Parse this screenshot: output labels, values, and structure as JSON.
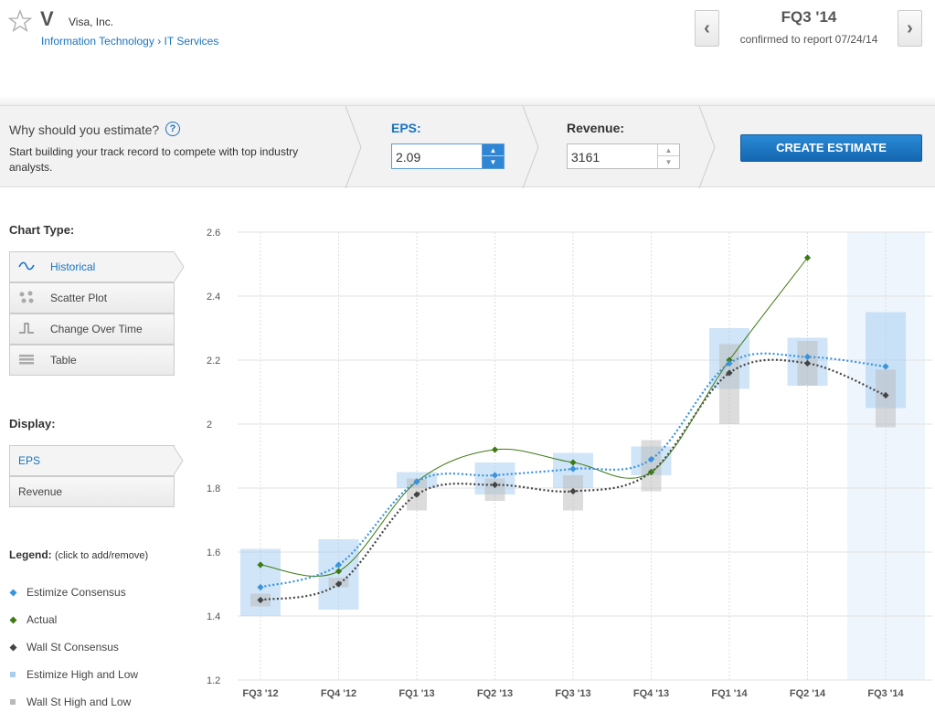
{
  "header": {
    "ticker": "V",
    "company": "Visa, Inc.",
    "sector": "Information Technology",
    "separator": "›",
    "industry": "IT Services",
    "quarter": "FQ3 '14",
    "confirmed": "confirmed to report 07/24/14",
    "prev_icon": "chevron-left-icon",
    "next_icon": "chevron-right-icon",
    "prev_label": "‹",
    "next_label": "›"
  },
  "estimate": {
    "why_title": "Why should you estimate?",
    "help_label": "?",
    "why_text": "Start building your track record to compete with top industry analysts.",
    "eps_label": "EPS:",
    "eps_value": "2.09",
    "revenue_label": "Revenue:",
    "revenue_value": "3161",
    "create_label": "CREATE ESTIMATE"
  },
  "sidebar": {
    "chart_type_title": "Chart Type:",
    "chart_types": [
      {
        "label": "Historical",
        "icon": "wave-icon",
        "active": true
      },
      {
        "label": "Scatter Plot",
        "icon": "scatter-icon",
        "active": false
      },
      {
        "label": "Change Over Time",
        "icon": "step-icon",
        "active": false
      },
      {
        "label": "Table",
        "icon": "table-icon",
        "active": false
      }
    ],
    "display_title": "Display:",
    "display_options": [
      {
        "label": "EPS",
        "active": true
      },
      {
        "label": "Revenue",
        "active": false
      }
    ],
    "legend_title": "Legend:",
    "legend_hint": "(click to add/remove)",
    "legend": [
      {
        "label": "Estimize Consensus",
        "color": "#3a93dd"
      },
      {
        "label": "Actual",
        "color": "#3d7a14"
      },
      {
        "label": "Wall St Consensus",
        "color": "#444444"
      },
      {
        "label": "Estimize High and Low",
        "color": "#a9cff0"
      },
      {
        "label": "Wall St High and Low",
        "color": "#b9b9b9"
      }
    ]
  },
  "chart_data": {
    "type": "line",
    "categories": [
      "FQ3 '12",
      "FQ4 '12",
      "FQ1 '13",
      "FQ2 '13",
      "FQ3 '13",
      "FQ4 '13",
      "FQ1 '14",
      "FQ2 '14",
      "FQ3 '14"
    ],
    "ylim": [
      1.2,
      2.6
    ],
    "yticks": [
      "1.2",
      "1.4",
      "1.6",
      "1.8",
      "2",
      "2.2",
      "2.4",
      "2.6"
    ],
    "grid": true,
    "series": [
      {
        "name": "Estimize Consensus",
        "values": [
          1.49,
          1.56,
          1.82,
          1.84,
          1.86,
          1.89,
          2.19,
          2.21,
          2.18
        ]
      },
      {
        "name": "Actual",
        "values": [
          1.56,
          1.54,
          1.82,
          1.92,
          1.88,
          1.85,
          2.2,
          2.52,
          null
        ]
      },
      {
        "name": "Wall St Consensus",
        "values": [
          1.45,
          1.5,
          1.78,
          1.81,
          1.79,
          1.85,
          2.16,
          2.19,
          2.09
        ]
      }
    ],
    "estimize_range": [
      [
        1.4,
        1.61
      ],
      [
        1.42,
        1.64
      ],
      [
        1.8,
        1.85
      ],
      [
        1.78,
        1.88
      ],
      [
        1.8,
        1.91
      ],
      [
        1.84,
        1.93
      ],
      [
        2.11,
        2.3
      ],
      [
        2.12,
        2.27
      ],
      [
        2.05,
        2.35
      ]
    ],
    "wallst_range": [
      [
        1.43,
        1.47
      ],
      [
        1.49,
        1.52
      ],
      [
        1.73,
        1.83
      ],
      [
        1.76,
        1.83
      ],
      [
        1.73,
        1.84
      ],
      [
        1.79,
        1.95
      ],
      [
        2.0,
        2.25
      ],
      [
        2.12,
        2.26
      ],
      [
        1.99,
        2.17
      ]
    ]
  }
}
